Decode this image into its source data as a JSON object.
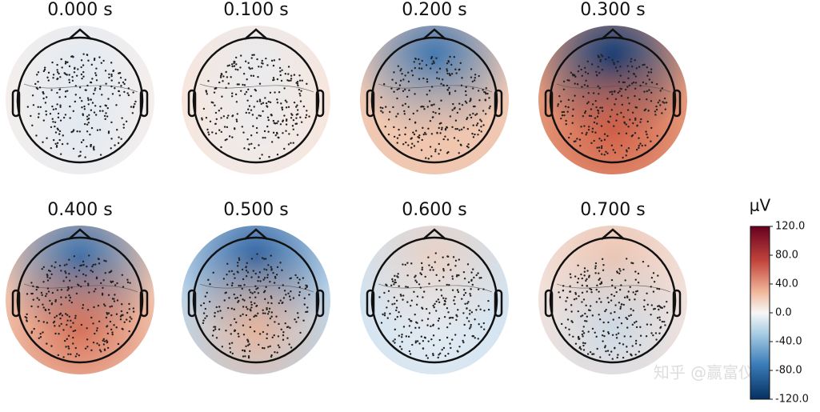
{
  "chart_data": {
    "type": "topomap",
    "panels": [
      {
        "title": "0.000 s"
      },
      {
        "title": "0.100 s"
      },
      {
        "title": "0.200 s"
      },
      {
        "title": "0.300 s"
      },
      {
        "title": "0.400 s"
      },
      {
        "title": "0.500 s"
      },
      {
        "title": "0.600 s"
      },
      {
        "title": "0.700 s"
      }
    ],
    "colorbar": {
      "label": "μV",
      "ylim": [
        -120,
        120
      ],
      "yticks": [
        {
          "value": 120,
          "label": "120.0"
        },
        {
          "value": 80,
          "label": "80.0"
        },
        {
          "value": 40,
          "label": "40.0"
        },
        {
          "value": 0,
          "label": "0.0"
        },
        {
          "value": -40,
          "label": "-40.0"
        },
        {
          "value": -80,
          "label": "-80.0"
        },
        {
          "value": -120,
          "label": "-120.0"
        }
      ]
    },
    "watermark": "知乎 @赢富仪器"
  }
}
